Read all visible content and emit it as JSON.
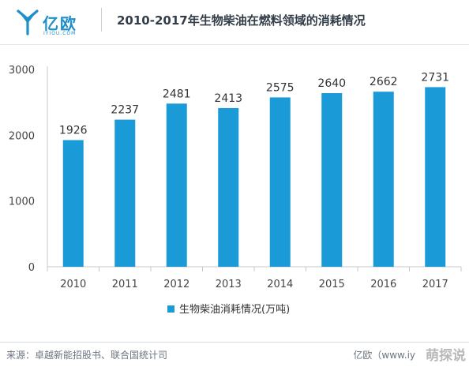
{
  "brand": {
    "name": "亿欧",
    "sub": "IYIOU.COM",
    "accent": "#1f8fc9"
  },
  "chart_data": {
    "type": "bar",
    "title": "2010-2017年生物柴油在燃料领域的消耗情况",
    "categories": [
      "2010",
      "2011",
      "2012",
      "2013",
      "2014",
      "2015",
      "2016",
      "2017"
    ],
    "series": [
      {
        "name": "生物柴油消耗情况(万吨)",
        "color": "#1a9bd7",
        "values": [
          1926,
          2237,
          2481,
          2413,
          2575,
          2640,
          2662,
          2731
        ],
        "labels": [
          "1926",
          "2237",
          "2481",
          "2413",
          "2575",
          "2640",
          "2662",
          "2731"
        ]
      }
    ],
    "ylim": [
      0,
      3000
    ],
    "yticks": [
      0,
      1000,
      2000,
      3000
    ],
    "xlabel": "",
    "ylabel": "",
    "legend": "bottom-center",
    "grid": false
  },
  "footer": {
    "source": "来源：卓越新能招股书、联合国统计司",
    "right": "亿欧（www.iy",
    "watermark": "萌探说"
  }
}
